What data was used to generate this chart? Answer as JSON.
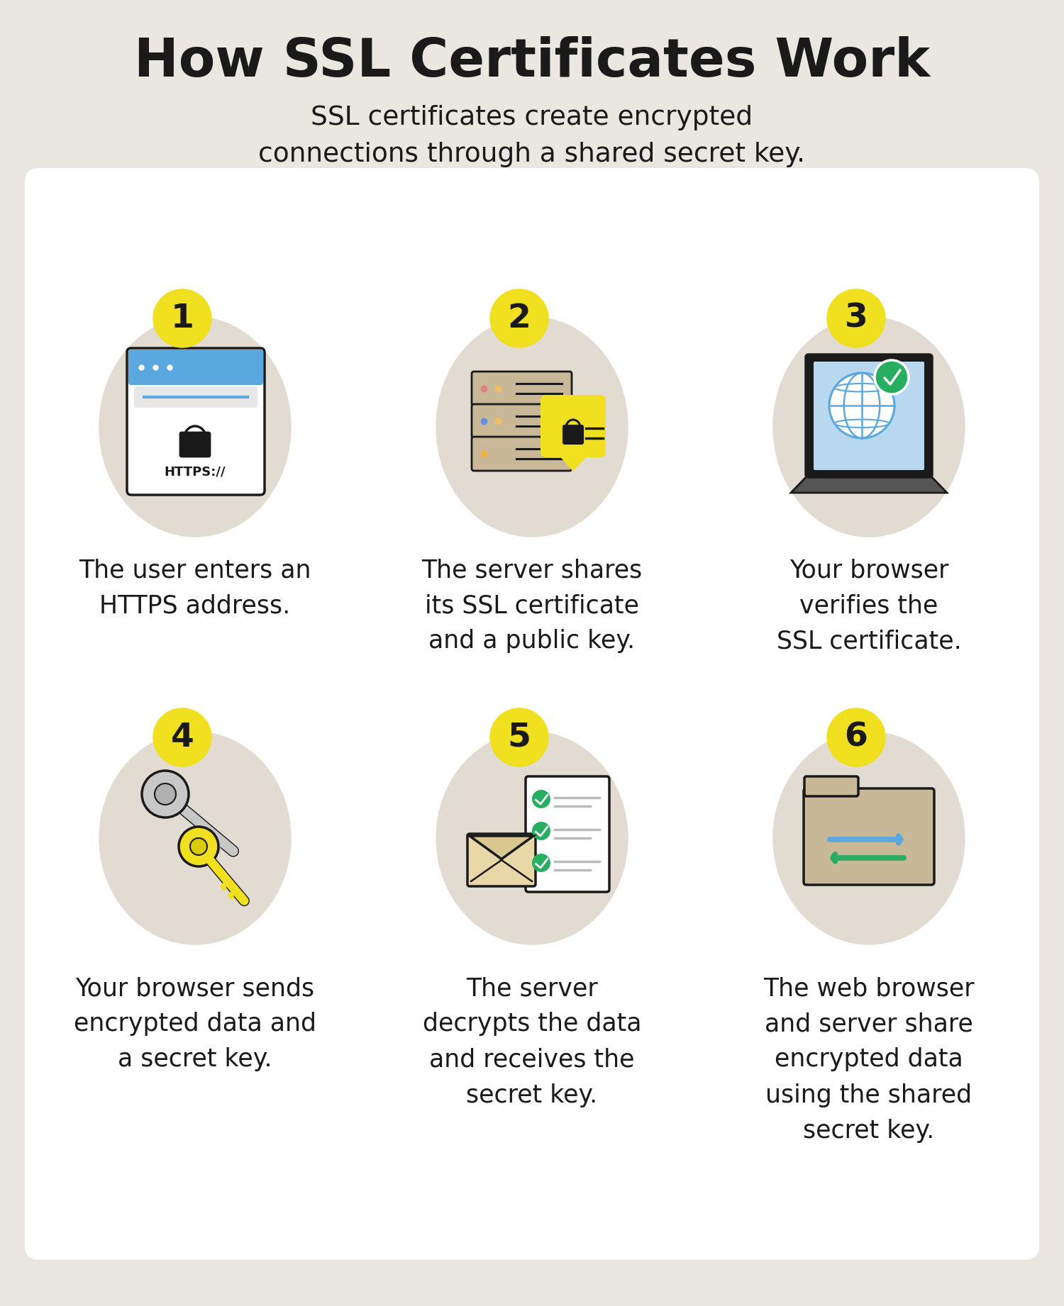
{
  "title": "How SSL Certificates Work",
  "subtitle": "SSL certificates create encrypted\nconnections through a shared secret key.",
  "bg_color": "#eae6e0",
  "card_color": "#ffffff",
  "yellow_color": "#f0e020",
  "black_color": "#1a1a1a",
  "step_descriptions": [
    "The user enters an\nHTTPS address.",
    "The server shares\nits SSL certificate\nand a public key.",
    "Your browser\nverifies the\nSSL certificate.",
    "Your browser sends\nencrypted data and\na secret key.",
    "The server\ndecrypts the data\nand receives the\nsecret key.",
    "The web browser\nand server share\nencrypted data\nusing the shared\nsecret key."
  ],
  "title_fontsize": 54,
  "subtitle_fontsize": 27,
  "step_num_fontsize": 34,
  "desc_fontsize": 25,
  "oval_color": "#e2dbd2",
  "green_color": "#27ae60",
  "blue_color": "#5ba8e0",
  "light_blue": "#b8d8f0",
  "tan_color": "#c8b898",
  "server_tan": "#c0b088"
}
